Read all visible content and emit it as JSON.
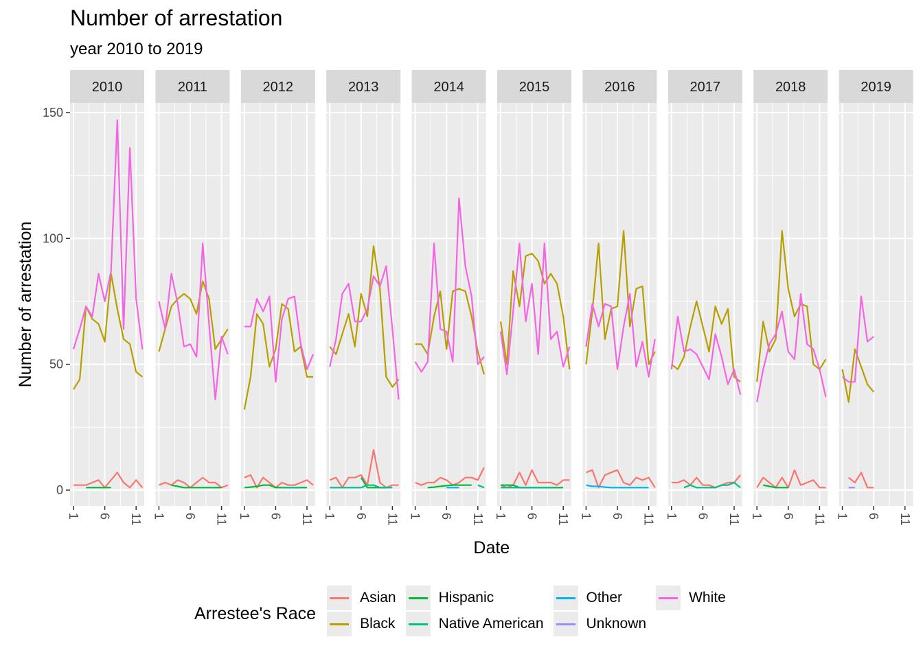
{
  "title": "Number of arrestation",
  "subtitle": "year 2010 to 2019",
  "chart_data": {
    "type": "line",
    "title": "Number of arrestation",
    "subtitle": "year 2010 to 2019",
    "xlabel": "Date",
    "ylabel": "Number of arrestation",
    "facet_labels": [
      "2010",
      "2011",
      "2012",
      "2013",
      "2014",
      "2015",
      "2016",
      "2017",
      "2018",
      "2019"
    ],
    "x_ticks": [
      "1",
      "6",
      "11"
    ],
    "y_ticks": [
      "0",
      "50",
      "100",
      "150"
    ],
    "x_range": [
      1,
      12
    ],
    "ylim": [
      0,
      150
    ],
    "grid": true,
    "legend_title": "Arrestee's Race",
    "legend_position": "bottom",
    "series": [
      {
        "name": "Asian",
        "color": "#F8766D",
        "facets": [
          [
            2,
            2,
            2,
            3,
            4,
            1,
            4,
            7,
            3,
            1,
            4,
            1
          ],
          [
            2,
            3,
            2,
            4,
            3,
            1,
            3,
            5,
            3,
            3,
            1,
            2
          ],
          [
            5,
            6,
            1,
            5,
            3,
            1,
            3,
            2,
            2,
            3,
            4,
            2
          ],
          [
            4,
            5,
            1,
            5,
            5,
            6,
            2,
            16,
            3,
            1,
            2,
            2
          ],
          [
            3,
            2,
            3,
            3,
            5,
            4,
            2,
            3,
            5,
            5,
            4,
            9
          ],
          [
            2,
            1,
            2,
            7,
            2,
            8,
            3,
            3,
            3,
            2,
            4,
            4
          ],
          [
            7,
            8,
            1,
            6,
            7,
            8,
            3,
            2,
            5,
            4,
            5,
            1
          ],
          [
            3,
            3,
            4,
            2,
            5,
            2,
            2,
            1,
            2,
            3,
            3,
            6
          ],
          [
            1,
            5,
            3,
            1,
            5,
            1,
            8,
            2,
            3,
            4,
            1,
            1
          ],
          [
            null,
            5,
            3,
            7,
            1,
            1,
            null,
            null,
            null,
            null,
            null,
            null
          ]
        ]
      },
      {
        "name": "Black",
        "color": "#B79F00",
        "facets": [
          [
            40,
            44,
            73,
            68,
            66,
            59,
            86,
            72,
            60,
            58,
            47,
            45
          ],
          [
            55,
            64,
            73,
            76,
            78,
            76,
            70,
            83,
            76,
            56,
            60,
            64
          ],
          [
            32,
            45,
            70,
            66,
            49,
            56,
            74,
            72,
            55,
            57,
            45,
            45
          ],
          [
            57,
            54,
            62,
            70,
            57,
            78,
            69,
            97,
            80,
            45,
            41,
            44
          ],
          [
            58,
            58,
            54,
            69,
            79,
            56,
            79,
            80,
            79,
            69,
            55,
            46
          ],
          [
            67,
            50,
            87,
            73,
            93,
            94,
            91,
            82,
            86,
            82,
            69,
            48
          ],
          [
            50,
            71,
            98,
            60,
            72,
            73,
            103,
            65,
            80,
            81,
            50,
            55
          ],
          [
            50,
            48,
            53,
            65,
            75,
            65,
            55,
            73,
            66,
            72,
            45,
            43
          ],
          [
            43,
            67,
            55,
            60,
            103,
            80,
            69,
            74,
            73,
            50,
            48,
            52
          ],
          [
            48,
            35,
            56,
            49,
            42,
            39,
            null,
            null,
            null,
            null,
            null,
            null
          ]
        ]
      },
      {
        "name": "Hispanic",
        "color": "#00BA38",
        "facets": [
          [
            null,
            null,
            1,
            1,
            1,
            1,
            1,
            null,
            null,
            null,
            null,
            null
          ],
          [
            null,
            null,
            2,
            1.5,
            1,
            1,
            1,
            1,
            1,
            1,
            1,
            null
          ],
          [
            1,
            1.2,
            1.5,
            2,
            2,
            1,
            1,
            1,
            1,
            1,
            1,
            null
          ],
          [
            null,
            null,
            null,
            null,
            null,
            5,
            1,
            1,
            1,
            1,
            null,
            null
          ],
          [
            null,
            null,
            1,
            1.2,
            1.5,
            1.8,
            2,
            2,
            2,
            2,
            null,
            null
          ],
          [
            2,
            2,
            2,
            1,
            1,
            1,
            1,
            1,
            1,
            1,
            1,
            null
          ],
          [
            null,
            null,
            null,
            null,
            null,
            null,
            null,
            null,
            null,
            null,
            null,
            null
          ],
          [
            null,
            null,
            null,
            null,
            null,
            null,
            null,
            null,
            null,
            null,
            1,
            null
          ],
          [
            null,
            2,
            1.5,
            1,
            1,
            1,
            null,
            null,
            null,
            null,
            null,
            null
          ],
          [
            null,
            null,
            null,
            null,
            null,
            null,
            null,
            null,
            null,
            null,
            null,
            null
          ]
        ]
      },
      {
        "name": "Native American",
        "color": "#00C08B",
        "facets": [
          [
            null,
            null,
            null,
            null,
            null,
            null,
            null,
            null,
            null,
            null,
            null,
            null
          ],
          [
            null,
            null,
            null,
            null,
            null,
            null,
            null,
            null,
            null,
            null,
            null,
            null
          ],
          [
            null,
            null,
            null,
            null,
            null,
            null,
            1,
            1,
            1,
            1,
            null,
            null
          ],
          [
            1,
            1,
            1,
            1,
            1,
            1,
            2,
            2,
            1,
            1,
            1,
            null
          ],
          [
            null,
            null,
            null,
            null,
            null,
            null,
            null,
            null,
            null,
            null,
            2,
            1
          ],
          [
            1,
            1,
            1,
            1,
            1,
            1,
            1,
            1,
            1,
            1,
            null,
            null
          ],
          [
            null,
            null,
            null,
            null,
            null,
            null,
            null,
            null,
            null,
            null,
            null,
            null
          ],
          [
            null,
            null,
            1,
            2,
            1,
            1,
            1,
            1,
            2,
            2,
            3,
            1
          ],
          [
            null,
            null,
            null,
            null,
            null,
            null,
            null,
            null,
            null,
            null,
            null,
            null
          ],
          [
            null,
            null,
            null,
            null,
            null,
            null,
            null,
            null,
            null,
            null,
            null,
            null
          ]
        ]
      },
      {
        "name": "Other",
        "color": "#00B4F0",
        "facets": [
          [
            null,
            null,
            null,
            null,
            null,
            null,
            null,
            null,
            null,
            null,
            null,
            null
          ],
          [
            null,
            null,
            null,
            null,
            null,
            null,
            null,
            null,
            null,
            null,
            null,
            null
          ],
          [
            null,
            null,
            null,
            null,
            null,
            null,
            null,
            null,
            null,
            null,
            null,
            null
          ],
          [
            null,
            null,
            null,
            null,
            null,
            null,
            null,
            null,
            null,
            null,
            null,
            null
          ],
          [
            null,
            null,
            null,
            null,
            null,
            1,
            1,
            1,
            null,
            null,
            null,
            null
          ],
          [
            null,
            null,
            null,
            null,
            null,
            null,
            null,
            null,
            null,
            null,
            null,
            null
          ],
          [
            2,
            1.5,
            1.5,
            1.2,
            1,
            1,
            1,
            1,
            1,
            1,
            1,
            null
          ],
          [
            null,
            null,
            null,
            null,
            null,
            null,
            null,
            null,
            null,
            null,
            null,
            null
          ],
          [
            null,
            null,
            null,
            null,
            null,
            null,
            null,
            null,
            null,
            null,
            null,
            null
          ],
          [
            null,
            null,
            null,
            null,
            null,
            null,
            null,
            null,
            null,
            null,
            null,
            null
          ]
        ]
      },
      {
        "name": "Unknown",
        "color": "#9590FF",
        "facets": [
          [
            null,
            null,
            null,
            null,
            null,
            null,
            null,
            null,
            null,
            null,
            null,
            null
          ],
          [
            null,
            null,
            null,
            null,
            null,
            null,
            null,
            null,
            null,
            null,
            null,
            null
          ],
          [
            null,
            null,
            null,
            null,
            null,
            null,
            null,
            null,
            null,
            null,
            null,
            null
          ],
          [
            null,
            null,
            null,
            null,
            null,
            null,
            null,
            null,
            null,
            null,
            null,
            null
          ],
          [
            null,
            null,
            null,
            null,
            null,
            null,
            null,
            null,
            null,
            null,
            null,
            null
          ],
          [
            null,
            null,
            null,
            null,
            null,
            null,
            null,
            null,
            null,
            null,
            null,
            null
          ],
          [
            null,
            null,
            null,
            null,
            null,
            null,
            null,
            null,
            null,
            null,
            null,
            null
          ],
          [
            null,
            null,
            null,
            null,
            null,
            null,
            null,
            null,
            null,
            null,
            null,
            null
          ],
          [
            null,
            null,
            null,
            null,
            null,
            null,
            null,
            null,
            null,
            null,
            null,
            null
          ],
          [
            null,
            1,
            1,
            null,
            null,
            null,
            null,
            null,
            null,
            null,
            null,
            null
          ]
        ]
      },
      {
        "name": "White",
        "color": "#F564E3",
        "facets": [
          [
            56,
            64,
            73,
            69,
            86,
            75,
            87,
            147,
            64,
            136,
            76,
            56
          ],
          [
            75,
            64,
            86,
            74,
            57,
            58,
            53,
            98,
            66,
            36,
            61,
            54
          ],
          [
            65,
            65,
            76,
            71,
            77,
            43,
            68,
            76,
            77,
            58,
            48,
            54
          ],
          [
            49,
            60,
            78,
            82,
            67,
            67,
            72,
            85,
            81,
            89,
            64,
            36
          ],
          [
            51,
            47,
            51,
            98,
            64,
            63,
            51,
            116,
            89,
            77,
            50,
            53
          ],
          [
            63,
            46,
            71,
            98,
            67,
            82,
            54,
            98,
            60,
            63,
            49,
            57
          ],
          [
            57,
            74,
            65,
            74,
            73,
            48,
            65,
            78,
            49,
            59,
            45,
            60
          ],
          [
            48,
            69,
            55,
            56,
            54,
            49,
            44,
            62,
            53,
            42,
            48,
            38
          ],
          [
            35,
            48,
            58,
            62,
            71,
            55,
            52,
            78,
            58,
            56,
            48,
            37
          ],
          [
            45,
            43,
            43,
            77,
            59,
            61,
            null,
            null,
            null,
            null,
            null,
            null
          ]
        ]
      }
    ]
  }
}
